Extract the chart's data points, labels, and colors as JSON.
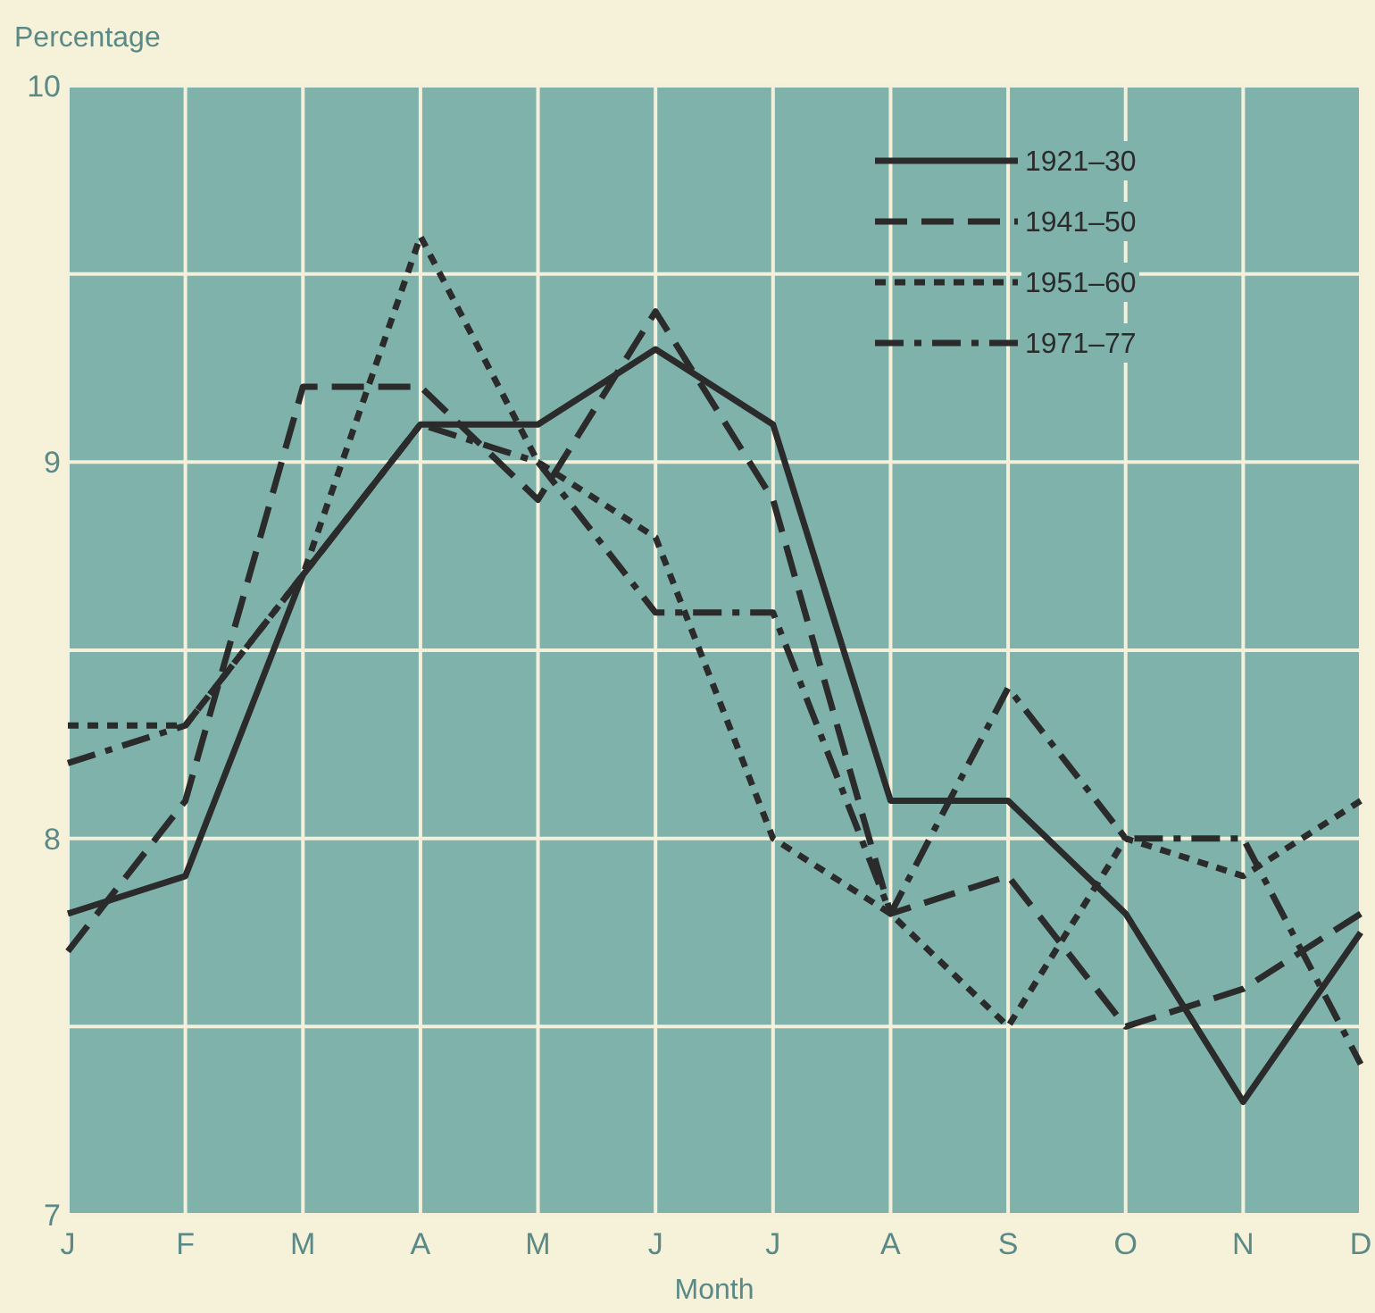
{
  "chart_data": {
    "type": "line",
    "ylabel": "Percentage",
    "xlabel": "Month",
    "categories": [
      "J",
      "F",
      "M",
      "A",
      "M",
      "J",
      "J",
      "A",
      "S",
      "O",
      "N",
      "D"
    ],
    "ylim": [
      7,
      10
    ],
    "yticks": [
      7,
      {
        "value": 7.5,
        "label": null
      },
      8,
      {
        "value": 8.5,
        "label": null
      },
      9,
      {
        "value": 9.5,
        "label": null
      },
      10
    ],
    "grid": true,
    "legend": "top right",
    "marker": "none",
    "series": [
      {
        "name": "1921–30",
        "color": "#2b2b2b",
        "line_style": "solid",
        "values": [
          7.8,
          7.9,
          8.7,
          9.1,
          9.1,
          9.3,
          9.1,
          8.1,
          8.1,
          7.8,
          7.3,
          7.75
        ]
      },
      {
        "name": "1941–50",
        "color": "#2b2b2b",
        "line_style": "dashed",
        "values": [
          7.7,
          8.1,
          9.2,
          9.2,
          8.9,
          9.4,
          8.9,
          7.8,
          7.9,
          7.5,
          7.6,
          7.8
        ]
      },
      {
        "name": "1951–60",
        "color": "#2b2b2b",
        "line_style": "dotted",
        "values": [
          8.3,
          8.3,
          8.7,
          9.6,
          9.0,
          8.8,
          8.0,
          7.8,
          7.5,
          8.0,
          7.9,
          8.1
        ]
      },
      {
        "name": "1971–77",
        "color": "#2b2b2b",
        "line_style": "dashdot",
        "values": [
          8.2,
          8.3,
          8.7,
          9.1,
          9.0,
          8.6,
          8.6,
          7.8,
          8.4,
          8.0,
          8.0,
          7.4
        ]
      }
    ]
  }
}
